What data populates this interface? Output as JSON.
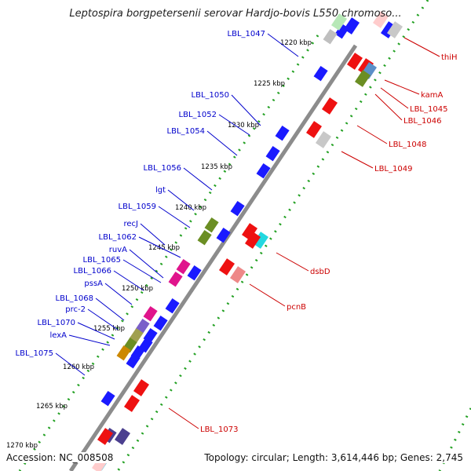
{
  "title": "Leptospira borgpetersenii serovar Hardjo-bovis L550 chromoso...",
  "footer": {
    "accession": "Accession: NC_008508",
    "topology": "Topology: circular; Length: 3,614,446 bp; Genes: 2,745"
  },
  "colors": {
    "forward_label": "#0000cc",
    "reverse_label": "#cc0000",
    "backbone": "#888888",
    "dots": "#22a022"
  },
  "ticks": [
    "1220 kbp",
    "1225 kbp",
    "1230 kbp",
    "1235 kbp",
    "1240 kbp",
    "1245 kbp",
    "1250 kbp",
    "1255 kbp",
    "1260 kbp",
    "1265 kbp",
    "1270 kbp"
  ],
  "forward_genes": [
    "LBL_1047",
    "LBL_1050",
    "LBL_1052",
    "LBL_1054",
    "LBL_1056",
    "lgt",
    "LBL_1059",
    "recJ",
    "LBL_1062",
    "ruvA",
    "LBL_1065",
    "LBL_1066",
    "pssA",
    "LBL_1068",
    "prc-2",
    "LBL_1070",
    "lexA",
    "LBL_1075"
  ],
  "reverse_genes": [
    "thiH",
    "kamA",
    "LBL_1045",
    "LBL_1046",
    "LBL_1048",
    "LBL_1049",
    "dsbD",
    "pcnB",
    "LBL_1073"
  ]
}
